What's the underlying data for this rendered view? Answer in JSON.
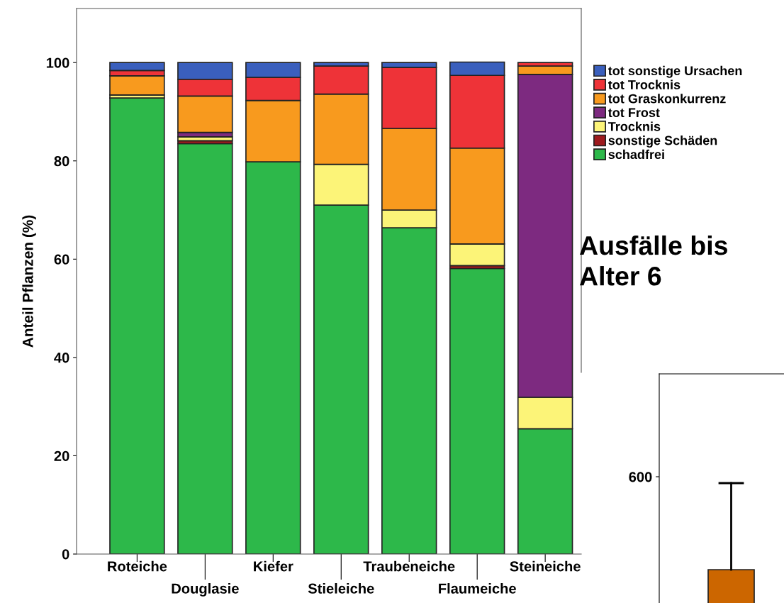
{
  "chart_data": [
    {
      "type": "bar",
      "stacked": true,
      "ylabel": "Anteil Pflanzen (%)",
      "categories": [
        "Roteiche",
        "Douglasie",
        "Kiefer",
        "Stieleiche",
        "Traubeneiche",
        "Flaumeiche",
        "Steineiche"
      ],
      "series": [
        {
          "name": "schadfrei",
          "color": "#2db84a",
          "values": [
            92.8,
            83.5,
            79.8,
            71.0,
            66.4,
            58.1,
            25.5
          ]
        },
        {
          "name": "sonstige Schäden",
          "color": "#9e1a1e",
          "values": [
            0,
            0.6,
            0,
            0,
            0,
            0.6,
            0
          ]
        },
        {
          "name": "Trocknis",
          "color": "#fcf478",
          "values": [
            0.6,
            0.8,
            0,
            8.3,
            3.6,
            4.4,
            6.4
          ]
        },
        {
          "name": "tot Frost",
          "color": "#7d2a80",
          "values": [
            0,
            0.9,
            0,
            0,
            0,
            0,
            65.7
          ]
        },
        {
          "name": "tot Graskonkurrenz",
          "color": "#f89a1e",
          "values": [
            3.9,
            7.4,
            12.5,
            14.3,
            16.6,
            19.5,
            1.7
          ]
        },
        {
          "name": "tot Trocknis",
          "color": "#ee3338",
          "values": [
            1.1,
            3.4,
            4.7,
            5.7,
            12.4,
            14.8,
            0.7
          ]
        },
        {
          "name": "tot sonstige Ursachen",
          "color": "#3a5fbd",
          "values": [
            1.6,
            3.4,
            3.0,
            0.7,
            1.0,
            2.7,
            0
          ]
        }
      ],
      "ylim": [
        0,
        111
      ],
      "yticks": [
        0,
        20,
        40,
        60,
        80,
        100
      ],
      "grid": false,
      "legend": "right",
      "annotations": [
        "Ausfälle bis\nAlter 6"
      ]
    },
    {
      "type": "other",
      "annotations": [
        "600"
      ]
    }
  ]
}
